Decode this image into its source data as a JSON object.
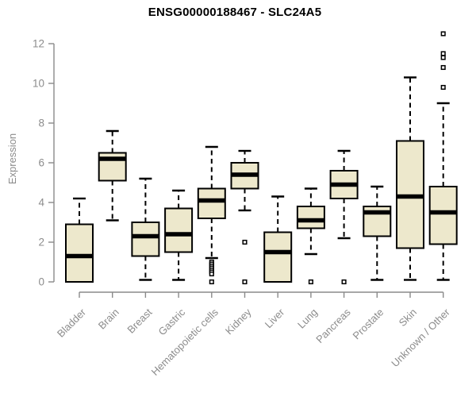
{
  "chart_data": {
    "type": "boxplot",
    "title": "ENSG00000188467 - SLC24A5",
    "xlabel": "",
    "ylabel": "Expression",
    "ylim": [
      0,
      12
    ],
    "yticks": [
      0,
      2,
      4,
      6,
      8,
      10,
      12
    ],
    "grid": false,
    "legend": false,
    "categories": [
      "Bladder",
      "Brain",
      "Breast",
      "Gastric",
      "Hematopoietic cells",
      "Kidney",
      "Liver",
      "Lung",
      "Pancreas",
      "Prostate",
      "Skin",
      "Unknown / Other"
    ],
    "series": [
      {
        "category": "Bladder",
        "whisker_low": 0.0,
        "q1": 0.0,
        "median": 1.3,
        "q3": 2.9,
        "whisker_high": 4.2,
        "outliers": []
      },
      {
        "category": "Brain",
        "whisker_low": 3.1,
        "q1": 5.1,
        "median": 6.2,
        "q3": 6.5,
        "whisker_high": 7.6,
        "outliers": []
      },
      {
        "category": "Breast",
        "whisker_low": 0.1,
        "q1": 1.3,
        "median": 2.3,
        "q3": 3.0,
        "whisker_high": 5.2,
        "outliers": []
      },
      {
        "category": "Gastric",
        "whisker_low": 0.1,
        "q1": 1.5,
        "median": 2.4,
        "q3": 3.7,
        "whisker_high": 4.6,
        "outliers": []
      },
      {
        "category": "Hematopoietic cells",
        "whisker_low": 1.2,
        "q1": 3.2,
        "median": 4.1,
        "q3": 4.7,
        "whisker_high": 6.8,
        "outliers": [
          1.0,
          0.9,
          0.8,
          0.7,
          0.6,
          0.5,
          0.4,
          0.0
        ]
      },
      {
        "category": "Kidney",
        "whisker_low": 3.6,
        "q1": 4.7,
        "median": 5.4,
        "q3": 6.0,
        "whisker_high": 6.6,
        "outliers": [
          2.0,
          0.0
        ]
      },
      {
        "category": "Liver",
        "whisker_low": 0.0,
        "q1": 0.0,
        "median": 1.5,
        "q3": 2.5,
        "whisker_high": 4.3,
        "outliers": []
      },
      {
        "category": "Lung",
        "whisker_low": 1.4,
        "q1": 2.7,
        "median": 3.1,
        "q3": 3.8,
        "whisker_high": 4.7,
        "outliers": [
          0.0
        ]
      },
      {
        "category": "Pancreas",
        "whisker_low": 2.2,
        "q1": 4.2,
        "median": 4.9,
        "q3": 5.6,
        "whisker_high": 6.6,
        "outliers": [
          0.0
        ]
      },
      {
        "category": "Prostate",
        "whisker_low": 0.1,
        "q1": 2.3,
        "median": 3.5,
        "q3": 3.8,
        "whisker_high": 4.8,
        "outliers": []
      },
      {
        "category": "Skin",
        "whisker_low": 0.1,
        "q1": 1.7,
        "median": 4.3,
        "q3": 7.1,
        "whisker_high": 10.3,
        "outliers": []
      },
      {
        "category": "Unknown / Other",
        "whisker_low": 0.1,
        "q1": 1.9,
        "median": 3.5,
        "q3": 4.8,
        "whisker_high": 9.0,
        "outliers": [
          12.5,
          11.5,
          11.3,
          10.8,
          9.8
        ]
      }
    ]
  },
  "colors": {
    "box_fill": "#EDE8CC",
    "box_stroke": "#000000",
    "median": "#000000",
    "whisker": "#000000",
    "outlier_fill": "#FFFFFF",
    "outlier_stroke": "#000000",
    "axis": "#8A8A8A",
    "tick_label": "#8C8C8C",
    "title": "#000000"
  }
}
